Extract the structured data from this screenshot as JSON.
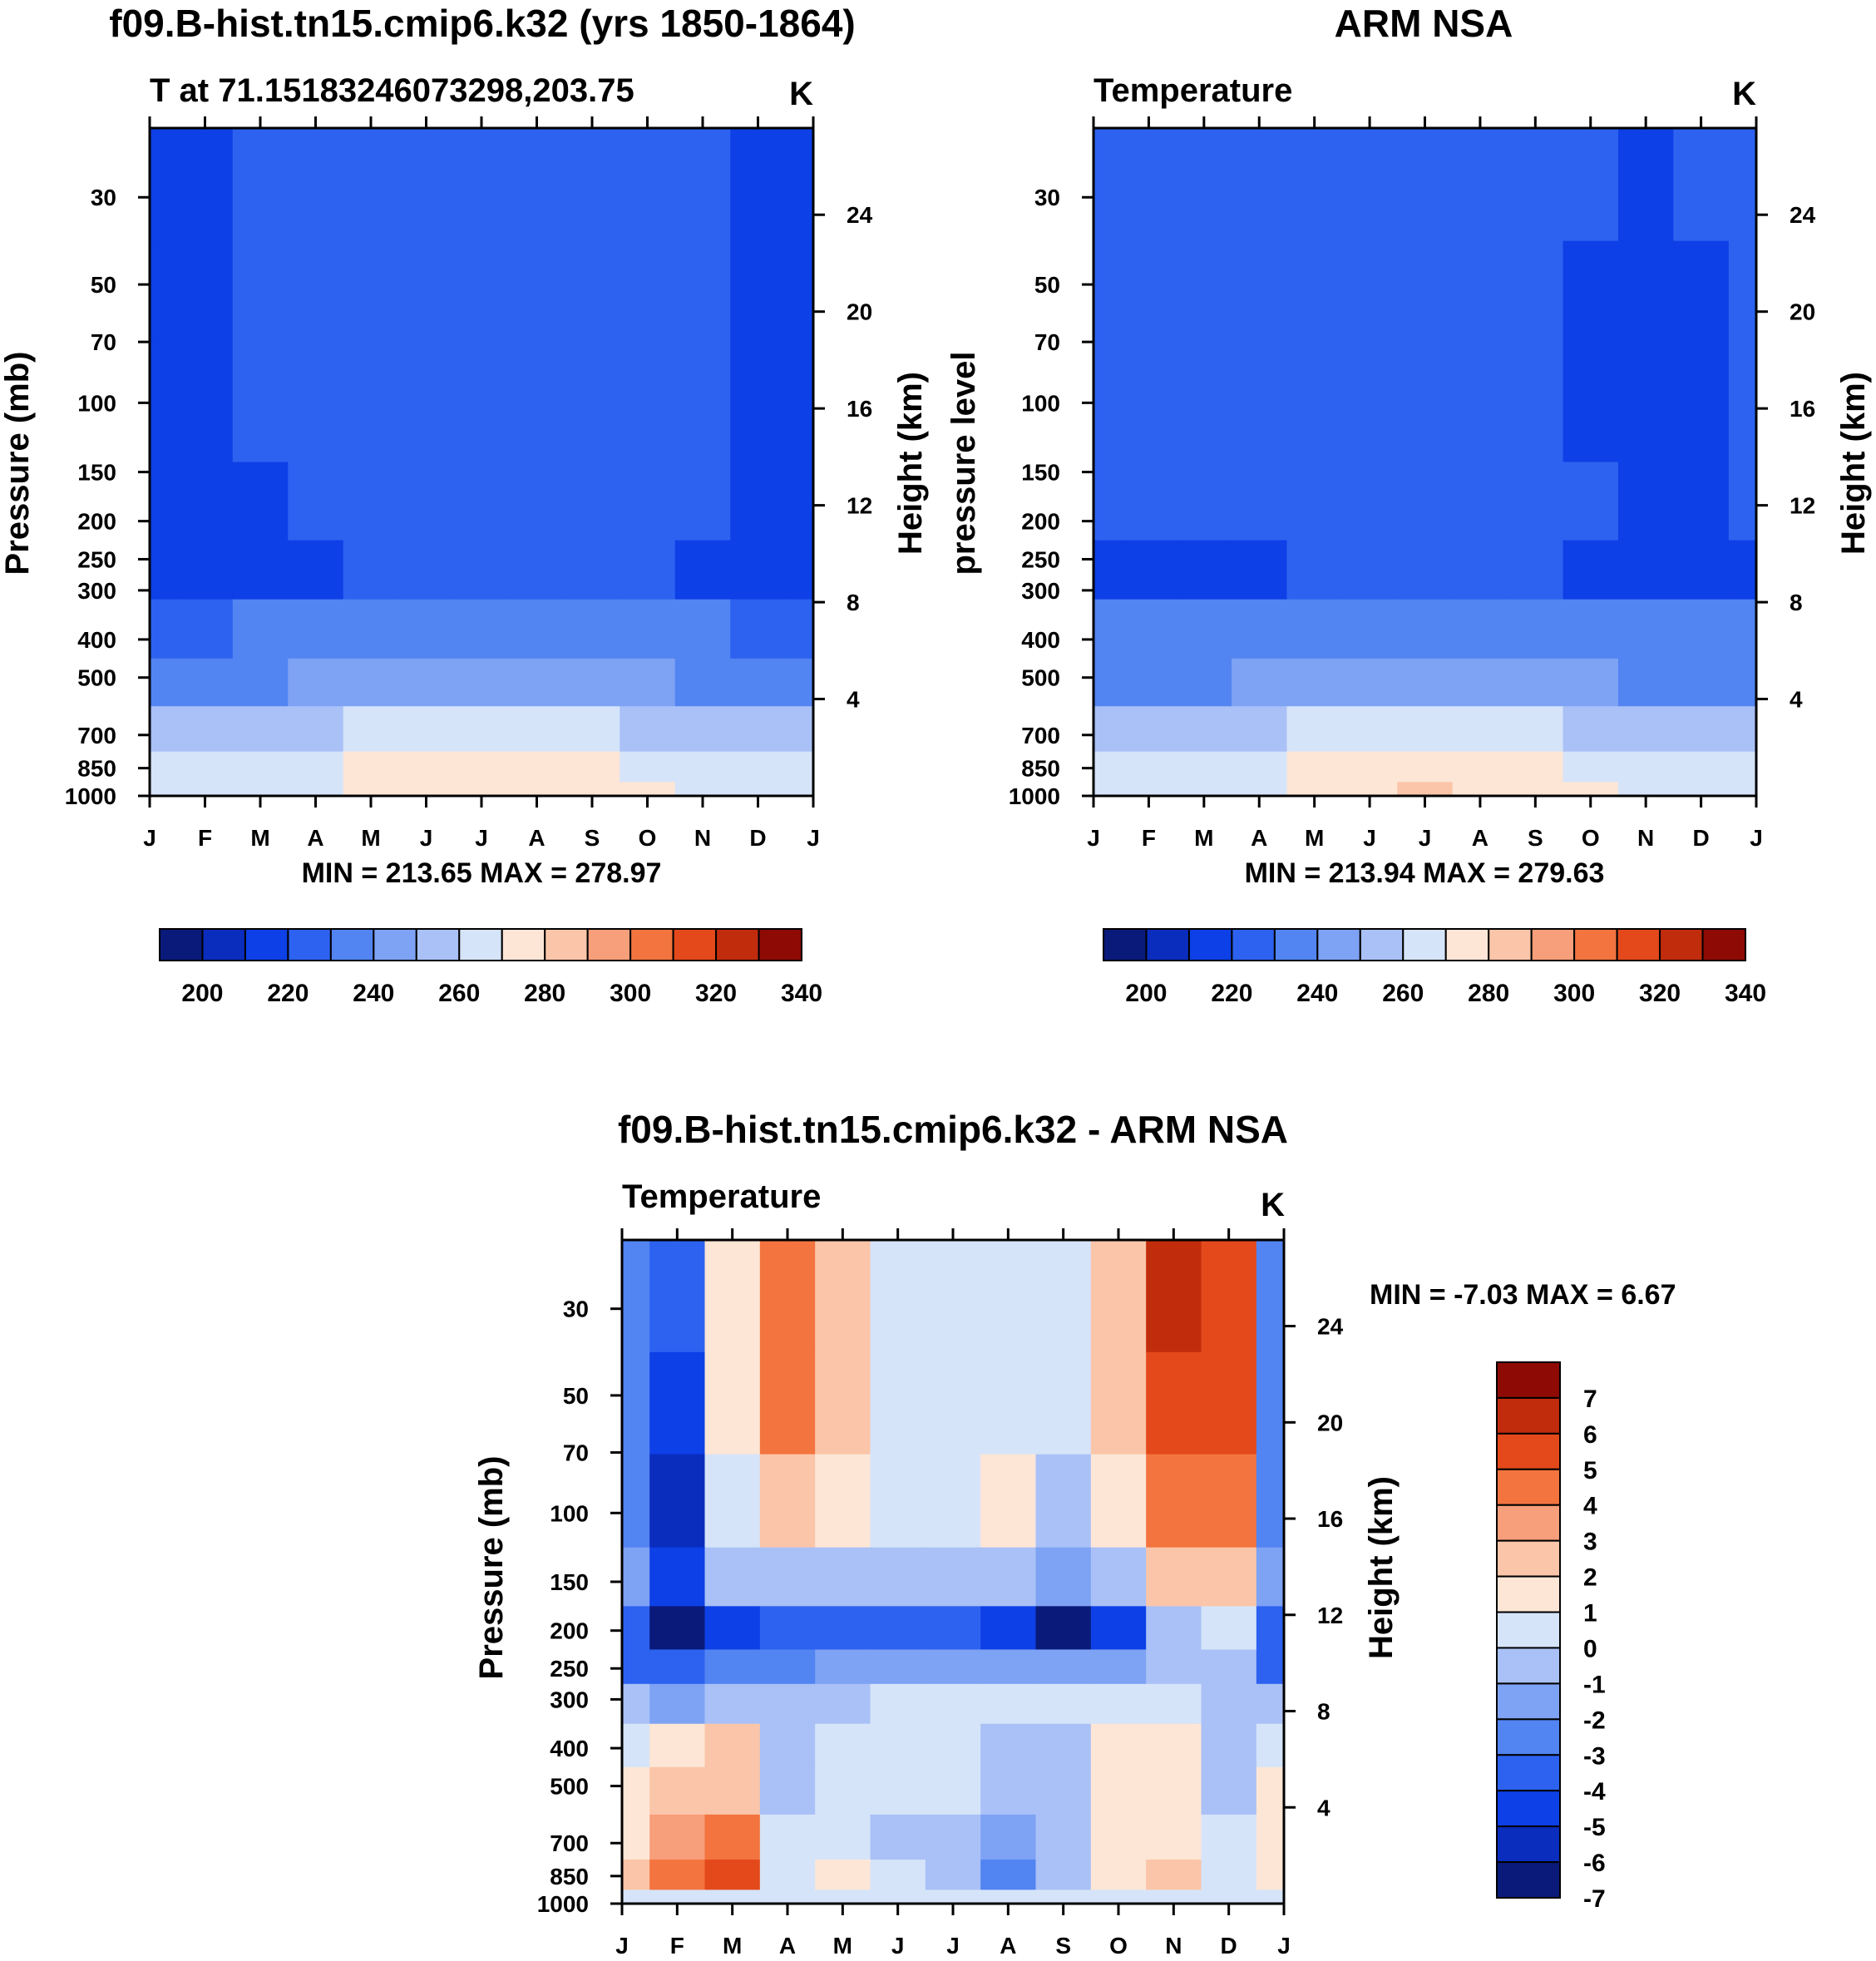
{
  "colors": {
    "temp_levels": [
      "#0a1a7a",
      "#0a2dbe",
      "#0d40e6",
      "#2d62f0",
      "#5284f2",
      "#7ea2f4",
      "#a9c1f6",
      "#d6e4f9",
      "#fde6d6",
      "#fbc5a9",
      "#f79e7a",
      "#f3743f",
      "#e4491b",
      "#c12c0d",
      "#8e0a04"
    ],
    "diff_levels": [
      "#0a1a7a",
      "#0a2dbe",
      "#0d40e6",
      "#2d62f0",
      "#5284f2",
      "#7ea2f4",
      "#a9c1f6",
      "#d6e4f9",
      "#fde6d6",
      "#fbc5a9",
      "#f79e7a",
      "#f3743f",
      "#e4491b",
      "#c12c0d",
      "#8e0a04"
    ]
  },
  "chart_data": [
    {
      "id": "model",
      "type": "heatmap",
      "title": "f09.B-hist.tn15.cmip6.k32 (yrs 1850-1864)",
      "left_label": "T at 71.15183246073298,203.75",
      "right_label": "K",
      "ylabel_left": "Pressure (mb)",
      "ylabel_right": "Height (km)",
      "x_ticks": [
        "J",
        "F",
        "M",
        "A",
        "M",
        "J",
        "J",
        "A",
        "S",
        "O",
        "N",
        "D",
        "J"
      ],
      "y_ticks": [
        "30",
        "50",
        "70",
        "100",
        "150",
        "200",
        "250",
        "300",
        "400",
        "500",
        "700",
        "850",
        "1000"
      ],
      "y_tick_values": [
        30,
        50,
        70,
        100,
        150,
        200,
        250,
        300,
        400,
        500,
        700,
        850,
        1000
      ],
      "height_ticks": [
        "24",
        "20",
        "16",
        "12",
        "8",
        "4"
      ],
      "height_tick_values": [
        24,
        20,
        16,
        12,
        8,
        4
      ],
      "ylim": [
        20,
        1000
      ],
      "stats": "MIN = 213.65 MAX = 278.97",
      "colorbar_ticks": [
        "200",
        "220",
        "240",
        "260",
        "280",
        "300",
        "320",
        "340"
      ],
      "colorbar_levels": [
        190,
        200,
        210,
        220,
        230,
        240,
        250,
        260,
        270,
        280,
        290,
        300,
        310,
        320,
        330,
        340,
        350
      ],
      "levels": [
        30,
        50,
        100,
        200,
        250,
        400,
        500,
        700,
        850,
        1000
      ],
      "months": [
        "J",
        "F",
        "M",
        "A",
        "M",
        "J",
        "J",
        "A",
        "S",
        "O",
        "N",
        "D",
        "J"
      ],
      "values": [
        [
          218,
          218,
          221,
          224,
          225,
          226,
          226,
          226,
          224,
          222,
          221,
          219,
          218
        ],
        [
          217,
          218,
          222,
          224,
          225,
          226,
          226,
          226,
          224,
          222,
          221,
          218,
          217
        ],
        [
          217,
          218,
          221,
          224,
          225,
          226,
          226,
          225,
          224,
          222,
          220,
          218,
          217
        ],
        [
          216,
          216,
          219,
          222,
          224,
          226,
          225,
          224,
          222,
          221,
          220,
          218,
          216
        ],
        [
          216,
          216,
          217,
          219,
          220,
          224,
          226,
          224,
          222,
          221,
          219,
          217,
          216
        ],
        [
          229,
          229,
          230,
          231,
          232,
          233,
          234,
          233,
          232,
          231,
          230,
          229,
          229
        ],
        [
          238,
          238,
          239,
          240,
          242,
          244,
          245,
          244,
          242,
          240,
          239,
          238,
          238
        ],
        [
          254,
          254,
          255,
          257,
          262,
          265,
          267,
          265,
          262,
          258,
          255,
          254,
          254
        ],
        [
          262,
          262,
          263,
          266,
          271,
          276,
          277,
          275,
          271,
          267,
          264,
          262,
          262
        ],
        [
          263,
          264,
          266,
          269,
          274,
          278,
          279,
          278,
          274,
          270,
          266,
          264,
          263
        ]
      ]
    },
    {
      "id": "obs",
      "type": "heatmap",
      "title": "ARM NSA",
      "left_label": "Temperature",
      "right_label": "K",
      "ylabel_left": "pressure level",
      "ylabel_right": "Height (km)",
      "x_ticks": [
        "J",
        "F",
        "M",
        "A",
        "M",
        "J",
        "J",
        "A",
        "S",
        "O",
        "N",
        "D",
        "J"
      ],
      "y_ticks": [
        "30",
        "50",
        "70",
        "100",
        "150",
        "200",
        "250",
        "300",
        "400",
        "500",
        "700",
        "850",
        "1000"
      ],
      "y_tick_values": [
        30,
        50,
        70,
        100,
        150,
        200,
        250,
        300,
        400,
        500,
        700,
        850,
        1000
      ],
      "height_ticks": [
        "24",
        "20",
        "16",
        "12",
        "8",
        "4"
      ],
      "height_tick_values": [
        24,
        20,
        16,
        12,
        8,
        4
      ],
      "ylim": [
        20,
        1000
      ],
      "stats": "MIN = 213.94 MAX = 279.63",
      "colorbar_ticks": [
        "200",
        "220",
        "240",
        "260",
        "280",
        "300",
        "320",
        "340"
      ],
      "colorbar_levels": [
        190,
        200,
        210,
        220,
        230,
        240,
        250,
        260,
        270,
        280,
        290,
        300,
        310,
        320,
        330,
        340,
        350
      ],
      "levels": [
        30,
        50,
        100,
        200,
        250,
        400,
        500,
        700,
        850,
        1000
      ],
      "months": [
        "J",
        "F",
        "M",
        "A",
        "M",
        "J",
        "J",
        "A",
        "S",
        "O",
        "N",
        "D",
        "J"
      ],
      "values": [
        [
          221,
          222,
          223,
          224,
          225,
          226,
          228,
          226,
          223,
          220,
          219,
          220,
          221
        ],
        [
          221,
          222,
          223,
          224,
          225,
          226,
          226,
          225,
          222,
          219,
          218,
          219,
          221
        ],
        [
          221,
          222,
          223,
          224,
          225,
          226,
          225,
          224,
          222,
          219,
          218,
          219,
          221
        ],
        [
          221,
          222,
          223,
          224,
          225,
          225,
          225,
          224,
          222,
          220,
          218,
          219,
          221
        ],
        [
          217,
          216,
          217,
          219,
          221,
          223,
          224,
          223,
          220,
          217,
          216,
          216,
          217
        ],
        [
          230,
          230,
          230,
          231,
          232,
          233,
          234,
          233,
          232,
          231,
          230,
          230,
          230
        ],
        [
          239,
          239,
          239,
          240,
          242,
          244,
          246,
          244,
          242,
          240,
          239,
          239,
          239
        ],
        [
          254,
          254,
          254,
          257,
          262,
          266,
          268,
          266,
          262,
          258,
          255,
          254,
          254
        ],
        [
          262,
          262,
          262,
          266,
          271,
          276,
          278,
          276,
          272,
          268,
          264,
          262,
          262
        ],
        [
          263,
          263,
          264,
          268,
          274,
          279,
          280,
          279,
          275,
          270,
          266,
          264,
          263
        ]
      ]
    },
    {
      "id": "diff",
      "type": "heatmap",
      "title": "f09.B-hist.tn15.cmip6.k32 - ARM NSA",
      "left_label": "Temperature",
      "right_label": "K",
      "ylabel_left": "Pressure (mb)",
      "ylabel_right": "Height (km)",
      "x_ticks": [
        "J",
        "F",
        "M",
        "A",
        "M",
        "J",
        "J",
        "A",
        "S",
        "O",
        "N",
        "D",
        "J"
      ],
      "y_ticks": [
        "30",
        "50",
        "70",
        "100",
        "150",
        "200",
        "250",
        "300",
        "400",
        "500",
        "700",
        "850",
        "1000"
      ],
      "y_tick_values": [
        30,
        50,
        70,
        100,
        150,
        200,
        250,
        300,
        400,
        500,
        700,
        850,
        1000
      ],
      "height_ticks": [
        "24",
        "20",
        "16",
        "12",
        "8",
        "4"
      ],
      "height_tick_values": [
        24,
        20,
        16,
        12,
        8,
        4
      ],
      "ylim": [
        20,
        1000
      ],
      "stats": "MIN =  -7.03 MAX =   6.67",
      "colorbar_ticks": [
        "7",
        "6",
        "5",
        "4",
        "3",
        "2",
        "1",
        "0",
        "-1",
        "-2",
        "-3",
        "-4",
        "-5",
        "-6",
        "-7"
      ],
      "colorbar_levels": [
        -7.5,
        -6.5,
        -5.5,
        -4.5,
        -3.5,
        -2.5,
        -1.5,
        -0.5,
        0.5,
        1.5,
        2.5,
        3.5,
        4.5,
        5.5,
        6.5,
        7.5
      ],
      "levels": [
        30,
        50,
        100,
        150,
        200,
        250,
        300,
        400,
        500,
        700,
        850,
        1000
      ],
      "months": [
        "J",
        "F",
        "M",
        "A",
        "M",
        "J",
        "J",
        "A",
        "S",
        "O",
        "N",
        "D",
        "J"
      ],
      "values": [
        [
          -3,
          -4,
          1,
          4,
          2,
          0,
          -0.3,
          -0.2,
          0,
          2,
          6,
          5,
          -3
        ],
        [
          -3,
          -5,
          1,
          4,
          2,
          0,
          -0.3,
          -0.5,
          0,
          2,
          5,
          5,
          -3
        ],
        [
          -3,
          -6,
          0,
          2,
          1,
          0,
          -0.3,
          0.7,
          -1,
          1,
          4,
          4,
          -3
        ],
        [
          -2,
          -5,
          -1,
          -1,
          -1,
          -1,
          -1,
          -1,
          -2,
          -1,
          2,
          2,
          -2
        ],
        [
          -4,
          -7,
          -5,
          -4,
          -4,
          -4,
          -4,
          -5,
          -7,
          -5,
          -1,
          0,
          -4
        ],
        [
          -4,
          -4,
          -3,
          -3,
          -2,
          -2,
          -2,
          -2,
          -2,
          -2,
          -1,
          -1,
          -4
        ],
        [
          -1,
          -2,
          -1,
          -1,
          -0.8,
          -0.5,
          -0.5,
          -0.5,
          -0.5,
          -0.5,
          -0.5,
          -1,
          -1
        ],
        [
          -0.5,
          1,
          2,
          -1,
          -0.5,
          -0.5,
          -0.5,
          -1,
          -1,
          1,
          0.5,
          -1,
          -0.5
        ],
        [
          0.5,
          2,
          2,
          -1,
          -0.5,
          -0.5,
          -0.5,
          -1,
          -1,
          1,
          0.5,
          -1,
          0.5
        ],
        [
          1,
          3,
          4,
          -0.5,
          -0.5,
          -1,
          -1,
          -2,
          -1,
          1,
          1,
          -0.5,
          1
        ],
        [
          2,
          4,
          5,
          -0.5,
          0.5,
          -0.5,
          -1,
          -3,
          -1,
          0.5,
          1.5,
          -0.5,
          0.5
        ],
        [
          0,
          0,
          0,
          0,
          0,
          0,
          0,
          0,
          0,
          0,
          0,
          0,
          0
        ]
      ]
    }
  ]
}
